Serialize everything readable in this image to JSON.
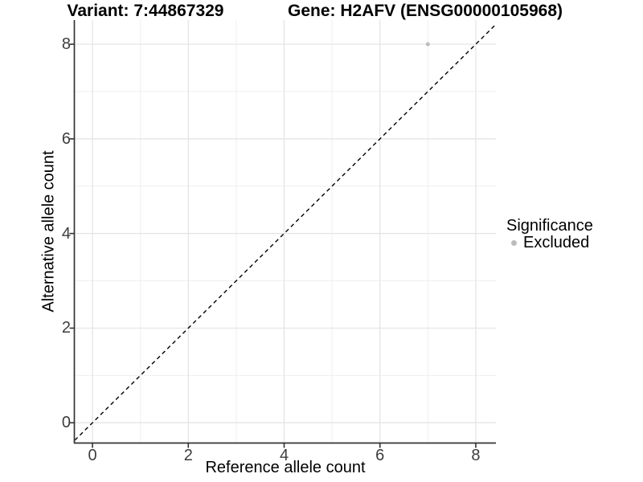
{
  "chart_data": {
    "type": "scatter",
    "title_variant": "Variant: 7:44867329",
    "title_gene": "Gene: H2AFV (ENSG00000105968)",
    "xlabel": "Reference allele count",
    "ylabel": "Alternative allele count",
    "xlim": [
      -0.37,
      8.42
    ],
    "ylim": [
      -0.42,
      8.51
    ],
    "x_major_ticks": [
      0,
      2,
      4,
      6,
      8
    ],
    "x_minor_ticks": [
      1,
      3,
      5,
      7
    ],
    "y_major_ticks": [
      0,
      2,
      4,
      6,
      8
    ],
    "y_minor_ticks": [
      1,
      3,
      5,
      7
    ],
    "grid": true,
    "series": [
      {
        "name": "Excluded",
        "color": "#bcbcbc",
        "points": [
          {
            "x": 7,
            "y": 8
          }
        ]
      }
    ],
    "identity_line": {
      "slope": 1,
      "intercept": 0,
      "style": "dashed",
      "color": "#000000"
    },
    "legend": {
      "title": "Significance",
      "position": "right",
      "items": [
        {
          "label": "Excluded",
          "color": "#bcbcbc"
        }
      ]
    },
    "colors": {
      "background": "#ffffff",
      "major_grid": "#e3e3e3",
      "minor_grid": "#efefef",
      "axis_line": "#333333",
      "tick_label": "#3d3d3d"
    }
  }
}
